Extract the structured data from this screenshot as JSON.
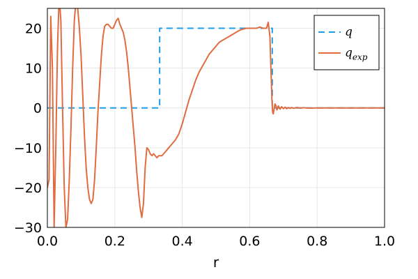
{
  "chart_data": {
    "type": "line",
    "title": "",
    "xlabel": "r",
    "ylabel": "",
    "xlim": [
      0.0,
      1.0
    ],
    "ylim": [
      -30,
      25
    ],
    "xticks": [
      0.0,
      0.2,
      0.4,
      0.6,
      0.8,
      1.0
    ],
    "xtick_labels": [
      "0.0",
      "0.2",
      "0.4",
      "0.6",
      "0.8",
      "1.0"
    ],
    "yticks": [
      -30,
      -20,
      -10,
      0,
      10,
      20
    ],
    "ytick_labels": [
      "−30",
      "−20",
      "−10",
      "0",
      "10",
      "20"
    ],
    "grid": true,
    "legend": {
      "position": "top-right"
    },
    "series": [
      {
        "name": "q",
        "name_base": "q",
        "name_sub": "",
        "style": "dashed",
        "color": "#1f9ee8",
        "x": [
          0.0,
          0.333,
          0.333,
          0.667,
          0.667,
          0.667,
          1.0
        ],
        "y": [
          0,
          0,
          20,
          20,
          20,
          0,
          0
        ]
      },
      {
        "name": "q_exp",
        "name_base": "q",
        "name_sub": "exp",
        "style": "solid",
        "color": "#e06c40",
        "x": [
          0.0,
          0.005,
          0.01,
          0.015,
          0.02,
          0.025,
          0.03,
          0.035,
          0.04,
          0.045,
          0.05,
          0.055,
          0.06,
          0.065,
          0.07,
          0.075,
          0.08,
          0.085,
          0.09,
          0.095,
          0.1,
          0.105,
          0.11,
          0.115,
          0.12,
          0.125,
          0.13,
          0.135,
          0.14,
          0.145,
          0.15,
          0.155,
          0.16,
          0.165,
          0.17,
          0.175,
          0.18,
          0.185,
          0.19,
          0.195,
          0.2,
          0.205,
          0.21,
          0.215,
          0.22,
          0.225,
          0.23,
          0.235,
          0.24,
          0.245,
          0.25,
          0.255,
          0.26,
          0.265,
          0.27,
          0.275,
          0.28,
          0.285,
          0.29,
          0.295,
          0.3,
          0.305,
          0.31,
          0.315,
          0.32,
          0.325,
          0.33,
          0.335,
          0.34,
          0.345,
          0.35,
          0.355,
          0.36,
          0.365,
          0.37,
          0.375,
          0.38,
          0.39,
          0.4,
          0.41,
          0.42,
          0.43,
          0.44,
          0.45,
          0.46,
          0.47,
          0.48,
          0.49,
          0.5,
          0.51,
          0.52,
          0.53,
          0.54,
          0.55,
          0.56,
          0.57,
          0.58,
          0.59,
          0.6,
          0.61,
          0.62,
          0.63,
          0.64,
          0.65,
          0.655,
          0.66,
          0.663,
          0.666,
          0.668,
          0.67,
          0.672,
          0.675,
          0.678,
          0.681,
          0.685,
          0.69,
          0.695,
          0.7,
          0.705,
          0.71,
          0.715,
          0.72,
          0.725,
          0.73,
          0.74,
          0.75,
          0.76,
          0.78,
          0.8,
          0.82,
          0.85,
          0.9,
          0.95,
          1.0
        ],
        "y": [
          -20,
          -18,
          23,
          10,
          -30,
          -10,
          15,
          28,
          22,
          0,
          -20,
          -30,
          -28,
          -18,
          -5,
          10,
          22,
          27,
          25,
          20,
          13,
          3,
          -7,
          -15,
          -20,
          -23,
          -24,
          -23,
          -18,
          -10,
          -1,
          6,
          13,
          18,
          20.5,
          21,
          21,
          20.5,
          20,
          20,
          21,
          22,
          22.5,
          21,
          20,
          19,
          17,
          14,
          10,
          5,
          0,
          -5,
          -10,
          -16,
          -21,
          -25,
          -27.5,
          -24,
          -15,
          -10,
          -10.5,
          -11.5,
          -12,
          -11.5,
          -12,
          -12.5,
          -12,
          -12,
          -12,
          -11.5,
          -11,
          -10.5,
          -10,
          -9.5,
          -9,
          -8.5,
          -8,
          -6.5,
          -4,
          -1,
          2,
          4.5,
          7,
          9,
          10.5,
          12,
          13.5,
          14.5,
          15.5,
          16.5,
          17,
          17.5,
          18,
          18.5,
          19,
          19.5,
          19.8,
          20,
          20,
          20,
          20,
          20.3,
          20,
          20,
          21.5,
          18,
          10,
          2,
          -1,
          -1.5,
          -0.5,
          1,
          0.5,
          -0.5,
          0.5,
          -0.3,
          0.3,
          -0.2,
          0.2,
          -0.2,
          0.1,
          -0.1,
          0.1,
          -0.1,
          0.1,
          -0.05,
          0.05,
          -0.05,
          0,
          0,
          0,
          0,
          0,
          0
        ]
      }
    ]
  }
}
